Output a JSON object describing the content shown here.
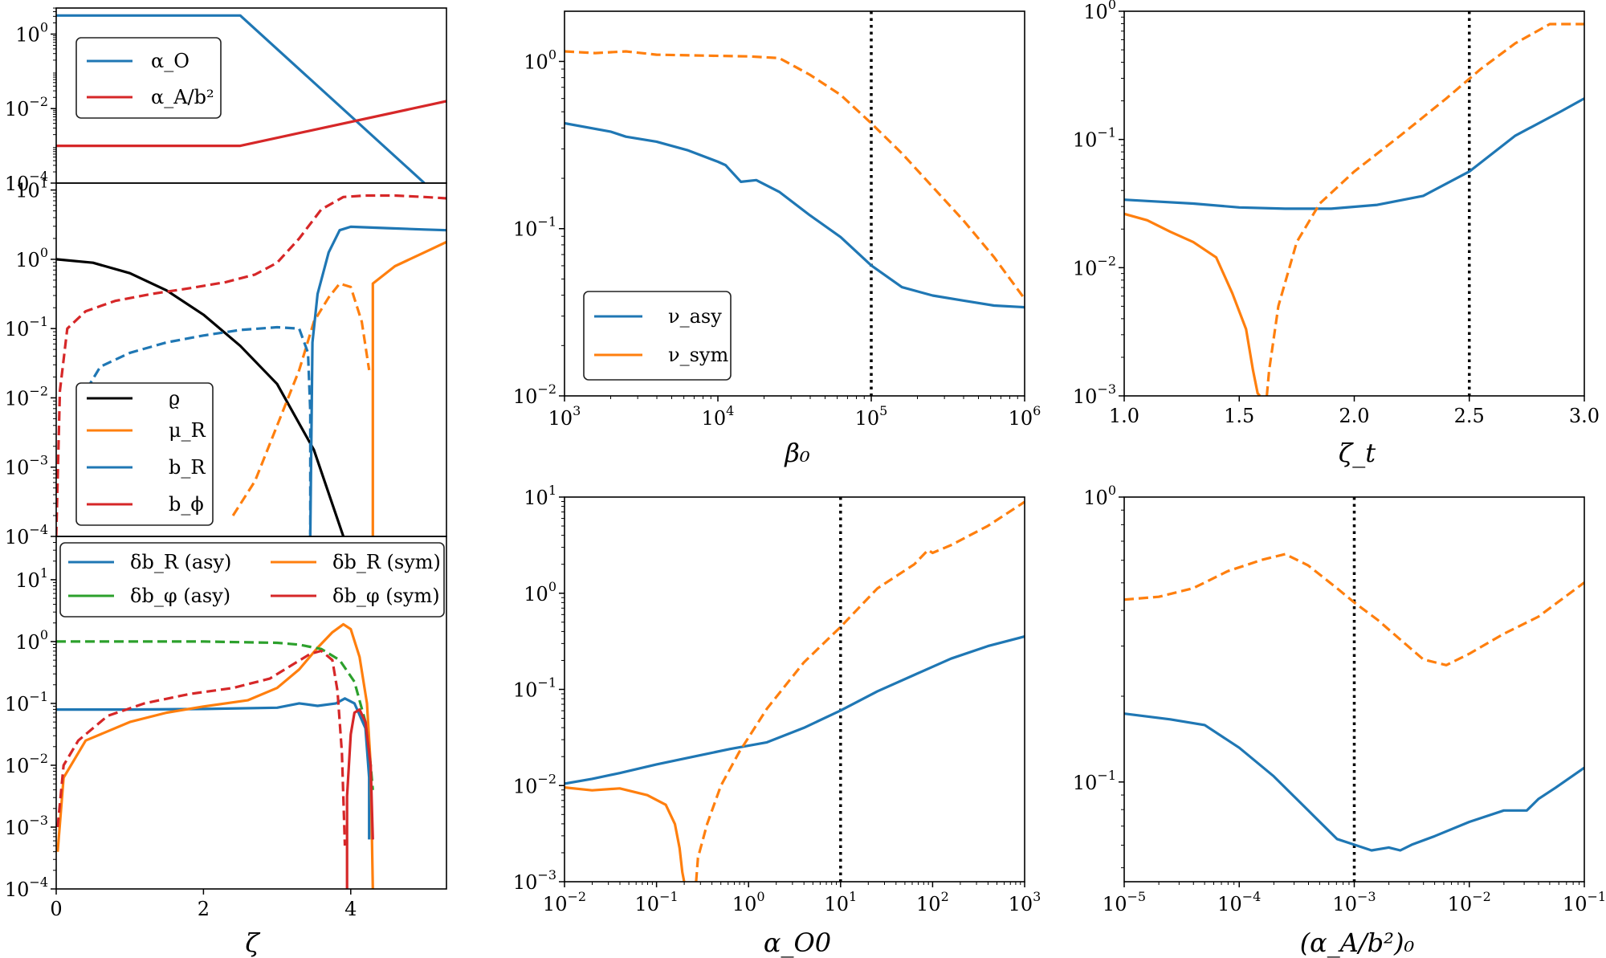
{
  "colors": {
    "blue": "#1f77b4",
    "orange": "#ff7f0e",
    "green": "#2ca02c",
    "red": "#d62728",
    "black": "#000000"
  },
  "left_column": {
    "xlabel": "ζ",
    "x_ticks": [
      "0",
      "2",
      "4"
    ]
  },
  "chart_data": [
    {
      "id": "left_top",
      "type": "line",
      "xlabel": "",
      "ylabel": "",
      "xlim": [
        0,
        5.3
      ],
      "ylim": [
        -4,
        0.7
      ],
      "yscale": "log",
      "y_ticks": [
        -4,
        -2,
        0
      ],
      "legend": {
        "placement": "top-left",
        "entries": [
          "α_O",
          "α_A/b²"
        ]
      },
      "series": [
        {
          "name": "α_O",
          "color": "#1f77b4",
          "dash": false,
          "x": [
            0,
            2.5,
            5.0
          ],
          "y": [
            0.5,
            0.5,
            -4.0
          ]
        },
        {
          "name": "α_A/b²",
          "color": "#d62728",
          "dash": false,
          "x": [
            0,
            2.5,
            5.3
          ],
          "y": [
            -3.0,
            -3.0,
            -1.8
          ]
        }
      ]
    },
    {
      "id": "left_mid",
      "type": "line",
      "xlabel": "",
      "ylabel": "",
      "xlim": [
        0,
        5.3
      ],
      "ylim": [
        -4,
        1.1
      ],
      "yscale": "log",
      "y_ticks": [
        -4,
        -3,
        -2,
        -1,
        0,
        1
      ],
      "legend": {
        "placement": "bottom-left",
        "entries": [
          "ϱ",
          "μ_R",
          "b_R",
          "b_ϕ"
        ]
      },
      "series": [
        {
          "name": "ϱ",
          "color": "#000000",
          "dash": false,
          "x": [
            0,
            0.5,
            1.0,
            1.5,
            2.0,
            2.5,
            3.0,
            3.5,
            3.9
          ],
          "y": [
            0,
            -0.05,
            -0.2,
            -0.45,
            -0.8,
            -1.25,
            -1.8,
            -2.75,
            -4
          ]
        },
        {
          "name": "μ_R (dashed)",
          "color": "#ff7f0e",
          "dash": true,
          "x": [
            2.4,
            2.7,
            3.0,
            3.3,
            3.5,
            3.7,
            3.85,
            4.0,
            4.15,
            4.25
          ],
          "y": [
            -3.7,
            -3.2,
            -2.4,
            -1.6,
            -0.9,
            -0.55,
            -0.35,
            -0.4,
            -0.9,
            -1.6
          ]
        },
        {
          "name": "μ_R",
          "color": "#ff7f0e",
          "dash": false,
          "x": [
            4.3,
            4.3,
            4.6,
            5.0,
            5.3
          ],
          "y": [
            -4,
            -0.35,
            -0.1,
            0.1,
            0.25
          ]
        },
        {
          "name": "b_R (dashed)",
          "color": "#1f77b4",
          "dash": true,
          "x": [
            0.3,
            0.4,
            0.6,
            1.0,
            1.5,
            2.0,
            2.5,
            3.0,
            3.3,
            3.42,
            3.45,
            3.45
          ],
          "y": [
            -2.7,
            -1.9,
            -1.55,
            -1.35,
            -1.2,
            -1.1,
            -1.02,
            -0.98,
            -1.0,
            -1.35,
            -2.2,
            -4
          ]
        },
        {
          "name": "b_R",
          "color": "#1f77b4",
          "dash": false,
          "x": [
            3.45,
            3.48,
            3.55,
            3.7,
            3.85,
            4.0,
            4.5,
            5.0,
            5.3
          ],
          "y": [
            -4,
            -1.2,
            -0.5,
            0.1,
            0.42,
            0.47,
            0.45,
            0.43,
            0.42
          ]
        },
        {
          "name": "b_ϕ (dashed)",
          "color": "#d62728",
          "dash": true,
          "x": [
            0,
            0.05,
            0.15,
            0.4,
            0.8,
            1.3,
            1.8,
            2.3,
            2.7,
            3.0,
            3.3,
            3.6,
            3.9,
            4.2,
            4.6,
            5.0,
            5.3
          ],
          "y": [
            -4,
            -1.9,
            -1.0,
            -0.75,
            -0.6,
            -0.5,
            -0.42,
            -0.33,
            -0.22,
            -0.05,
            0.3,
            0.72,
            0.9,
            0.92,
            0.92,
            0.9,
            0.88
          ]
        }
      ]
    },
    {
      "id": "left_bot",
      "type": "line",
      "xlabel": "ζ",
      "ylabel": "",
      "xlim": [
        0,
        5.3
      ],
      "ylim": [
        -4,
        1.7
      ],
      "yscale": "log",
      "y_ticks": [
        -4,
        -3,
        -2,
        -1,
        0,
        1
      ],
      "legend": {
        "placement": "top",
        "entries": [
          "δb_R (asy)",
          "δb_R (sym)",
          "δb_φ (asy)",
          "δb_φ (sym)"
        ]
      },
      "series": [
        {
          "name": "δb_R (asy)",
          "color": "#1f77b4",
          "dash": false,
          "x": [
            0,
            1,
            2,
            3,
            3.3,
            3.55,
            3.8,
            3.92,
            4.05,
            4.2,
            4.25,
            4.25
          ],
          "y": [
            -1.1,
            -1.1,
            -1.09,
            -1.07,
            -1.0,
            -1.04,
            -1.0,
            -0.92,
            -1.0,
            -1.4,
            -2.2,
            -3.2
          ]
        },
        {
          "name": "δb_R (sym)",
          "color": "#ff7f0e",
          "dash": false,
          "x": [
            0.02,
            0.1,
            0.4,
            1.0,
            1.5,
            2.0,
            2.6,
            3.0,
            3.3,
            3.55,
            3.75,
            3.9,
            4.0,
            4.12,
            4.22,
            4.27,
            4.3
          ],
          "y": [
            -3.4,
            -2.2,
            -1.6,
            -1.3,
            -1.15,
            -1.05,
            -0.95,
            -0.75,
            -0.45,
            -0.1,
            0.15,
            0.28,
            0.2,
            -0.25,
            -1.0,
            -2.0,
            -4
          ]
        },
        {
          "name": "δb_φ (asy)",
          "color": "#2ca02c",
          "dash": true,
          "x": [
            0,
            1,
            2,
            3,
            3.3,
            3.6,
            3.85,
            4.05,
            4.2,
            4.27,
            4.3
          ],
          "y": [
            0,
            0,
            0,
            -0.02,
            -0.05,
            -0.12,
            -0.3,
            -0.65,
            -1.3,
            -2.0,
            -2.4
          ]
        },
        {
          "name": "δb_φ (sym, dashed)",
          "color": "#d62728",
          "dash": true,
          "x": [
            0.02,
            0.1,
            0.3,
            0.7,
            1.2,
            1.8,
            2.4,
            2.9,
            3.2,
            3.45,
            3.6,
            3.75,
            3.82,
            3.88,
            3.92
          ],
          "y": [
            -3.0,
            -2.0,
            -1.6,
            -1.2,
            -1.0,
            -0.85,
            -0.75,
            -0.6,
            -0.38,
            -0.2,
            -0.15,
            -0.3,
            -0.8,
            -1.8,
            -3.3
          ]
        },
        {
          "name": "δb_φ (sym)",
          "color": "#d62728",
          "dash": false,
          "x": [
            3.95,
            3.95,
            4.0,
            4.05,
            4.12,
            4.2,
            4.27,
            4.3
          ],
          "y": [
            -4,
            -2.5,
            -1.5,
            -1.15,
            -1.1,
            -1.3,
            -2.0,
            -3.2
          ]
        }
      ]
    },
    {
      "id": "beta",
      "type": "line",
      "xlabel": "β₀",
      "ylabel": "",
      "xscale": "log",
      "yscale": "log",
      "xlim": [
        3,
        6
      ],
      "ylim": [
        -2,
        0.3
      ],
      "x_ticks": [
        3,
        4,
        5,
        6
      ],
      "y_ticks": [
        -2,
        -1,
        0
      ],
      "vline": 5,
      "legend": {
        "placement": "bottom-left",
        "entries": [
          "ν_asy",
          "ν_sym"
        ]
      },
      "series": [
        {
          "name": "ν_asy",
          "color": "#1f77b4",
          "dash": false,
          "x": [
            3.0,
            3.3,
            3.4,
            3.6,
            3.8,
            4.0,
            4.05,
            4.15,
            4.25,
            4.4,
            4.6,
            4.8,
            5.0,
            5.2,
            5.4,
            5.6,
            5.8,
            6.0
          ],
          "y": [
            -0.37,
            -0.42,
            -0.45,
            -0.48,
            -0.53,
            -0.6,
            -0.62,
            -0.72,
            -0.71,
            -0.78,
            -0.92,
            -1.05,
            -1.22,
            -1.35,
            -1.4,
            -1.43,
            -1.46,
            -1.47
          ]
        },
        {
          "name": "ν_sym",
          "color": "#ff7f0e",
          "dash": true,
          "x": [
            3.0,
            3.2,
            3.4,
            3.6,
            3.9,
            4.2,
            4.4,
            4.6,
            4.8,
            5.0,
            5.2,
            5.4,
            5.6,
            5.8,
            6.0
          ],
          "y": [
            0.06,
            0.05,
            0.06,
            0.04,
            0.035,
            0.03,
            0.02,
            -0.08,
            -0.2,
            -0.37,
            -0.55,
            -0.75,
            -0.95,
            -1.17,
            -1.42
          ]
        }
      ]
    },
    {
      "id": "zeta_t",
      "type": "line",
      "xlabel": "ζ_t",
      "ylabel": "",
      "xscale": "linear",
      "yscale": "log",
      "xlim": [
        1.0,
        3.0
      ],
      "ylim": [
        -3,
        0
      ],
      "x_ticks": [
        "1.0",
        "1.5",
        "2.0",
        "2.5",
        "3.0"
      ],
      "y_ticks": [
        -3,
        -2,
        -1,
        0
      ],
      "vline": 2.5,
      "series": [
        {
          "name": "ν_asy",
          "color": "#1f77b4",
          "dash": false,
          "x": [
            1.0,
            1.1,
            1.3,
            1.5,
            1.7,
            1.9,
            2.1,
            2.3,
            2.5,
            2.7,
            2.9,
            3.0
          ],
          "y": [
            -1.47,
            -1.48,
            -1.5,
            -1.53,
            -1.54,
            -1.54,
            -1.51,
            -1.44,
            -1.25,
            -0.97,
            -0.78,
            -0.68
          ]
        },
        {
          "name": "ν_sym (solid)",
          "color": "#ff7f0e",
          "dash": false,
          "x": [
            1.0,
            1.1,
            1.2,
            1.3,
            1.4,
            1.47,
            1.53,
            1.56,
            1.58,
            1.59
          ],
          "y": [
            -1.58,
            -1.63,
            -1.72,
            -1.8,
            -1.92,
            -2.2,
            -2.48,
            -2.8,
            -2.98,
            -3.0
          ]
        },
        {
          "name": "ν_sym (dashed)",
          "color": "#ff7f0e",
          "dash": true,
          "x": [
            1.62,
            1.63,
            1.67,
            1.75,
            1.85,
            2.0,
            2.2,
            2.4,
            2.55,
            2.7,
            2.85,
            3.0
          ],
          "y": [
            -3.0,
            -2.8,
            -2.3,
            -1.8,
            -1.5,
            -1.25,
            -0.97,
            -0.68,
            -0.45,
            -0.25,
            -0.1,
            -0.1
          ]
        }
      ]
    },
    {
      "id": "alpha_O0",
      "type": "line",
      "xlabel": "α_O0",
      "ylabel": "",
      "xscale": "log",
      "yscale": "log",
      "xlim": [
        -2,
        3
      ],
      "ylim": [
        -3,
        1
      ],
      "x_ticks": [
        -2,
        -1,
        0,
        1,
        2,
        3
      ],
      "y_ticks": [
        -3,
        -2,
        -1,
        0,
        1
      ],
      "vline": 1,
      "series": [
        {
          "name": "ν_asy",
          "color": "#1f77b4",
          "dash": false,
          "x": [
            -2.0,
            -1.7,
            -1.4,
            -1.0,
            -0.6,
            -0.2,
            0.2,
            0.6,
            1.0,
            1.4,
            1.8,
            2.2,
            2.6,
            3.0
          ],
          "y": [
            -1.98,
            -1.93,
            -1.87,
            -1.78,
            -1.7,
            -1.62,
            -1.55,
            -1.4,
            -1.22,
            -1.02,
            -0.85,
            -0.68,
            -0.55,
            -0.45
          ]
        },
        {
          "name": "ν_sym (solid)",
          "color": "#ff7f0e",
          "dash": false,
          "x": [
            -2.0,
            -1.7,
            -1.4,
            -1.1,
            -0.9,
            -0.8,
            -0.75,
            -0.72,
            -0.7
          ],
          "y": [
            -2.02,
            -2.05,
            -2.03,
            -2.1,
            -2.2,
            -2.4,
            -2.65,
            -2.9,
            -3.0
          ]
        },
        {
          "name": "ν_sym (dashed)",
          "color": "#ff7f0e",
          "dash": true,
          "x": [
            -0.57,
            -0.55,
            -0.45,
            -0.3,
            -0.1,
            0.2,
            0.6,
            1.0,
            1.4,
            1.8,
            1.95,
            2.0,
            2.2,
            2.6,
            3.0
          ],
          "y": [
            -3.0,
            -2.75,
            -2.4,
            -2.0,
            -1.65,
            -1.2,
            -0.72,
            -0.35,
            0.05,
            0.3,
            0.45,
            0.42,
            0.5,
            0.7,
            0.95
          ]
        }
      ]
    },
    {
      "id": "alpha_A0",
      "type": "line",
      "xlabel": "(α_A/b²)₀",
      "ylabel": "",
      "xscale": "log",
      "yscale": "log",
      "xlim": [
        -5,
        -1
      ],
      "ylim": [
        -1.35,
        0
      ],
      "x_ticks": [
        -5,
        -4,
        -3,
        -2,
        -1
      ],
      "y_ticks": [
        -1,
        0
      ],
      "vline": -3,
      "series": [
        {
          "name": "ν_asy",
          "color": "#1f77b4",
          "dash": false,
          "x": [
            -5.0,
            -4.6,
            -4.3,
            -4.0,
            -3.7,
            -3.4,
            -3.15,
            -3.0,
            -2.85,
            -2.7,
            -2.6,
            -2.5,
            -2.3,
            -2.0,
            -1.7,
            -1.5,
            -1.4,
            -1.25,
            -1.0
          ],
          "y": [
            -0.76,
            -0.78,
            -0.8,
            -0.88,
            -0.98,
            -1.1,
            -1.2,
            -1.22,
            -1.24,
            -1.23,
            -1.24,
            -1.22,
            -1.19,
            -1.14,
            -1.1,
            -1.1,
            -1.06,
            -1.02,
            -0.95
          ]
        },
        {
          "name": "ν_sym",
          "color": "#ff7f0e",
          "dash": true,
          "x": [
            -5.0,
            -4.7,
            -4.4,
            -4.1,
            -3.8,
            -3.6,
            -3.4,
            -3.15,
            -3.0,
            -2.8,
            -2.6,
            -2.4,
            -2.2,
            -2.0,
            -1.7,
            -1.4,
            -1.0
          ],
          "y": [
            -0.36,
            -0.35,
            -0.32,
            -0.26,
            -0.22,
            -0.2,
            -0.24,
            -0.32,
            -0.37,
            -0.43,
            -0.5,
            -0.57,
            -0.59,
            -0.55,
            -0.48,
            -0.42,
            -0.3
          ]
        }
      ]
    }
  ]
}
